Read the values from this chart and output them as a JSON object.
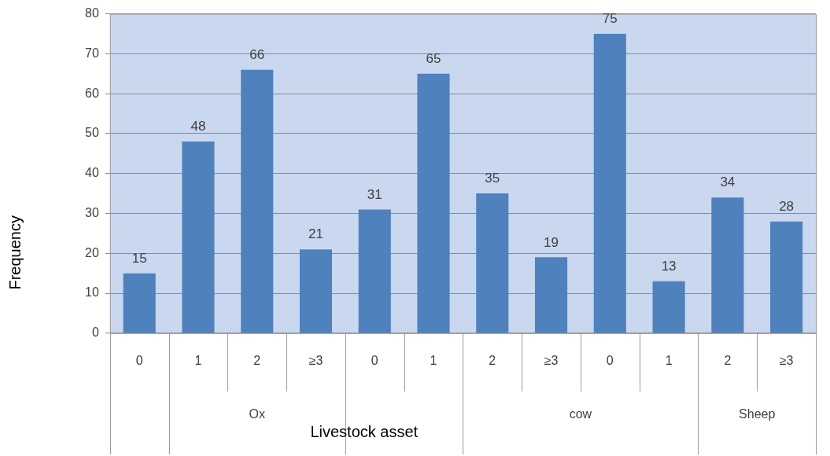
{
  "chart_data": {
    "type": "bar",
    "xlabel": "Livestock asset",
    "ylabel": "Frequency",
    "categories": [
      "0",
      "1",
      "2",
      "≥3",
      "0",
      "1",
      "2",
      "≥3",
      "0",
      "1",
      "2",
      "≥3"
    ],
    "values": [
      15,
      48,
      66,
      21,
      31,
      65,
      35,
      19,
      75,
      13,
      34,
      28
    ],
    "color": "#4f81bd",
    "ylim": [
      0,
      80
    ],
    "yticks": [
      0,
      10,
      20,
      30,
      40,
      50,
      60,
      70,
      80
    ],
    "grid": "y",
    "data_labels": true,
    "legend": false,
    "annotations": [
      "Ox",
      "cow",
      "Sheep"
    ]
  }
}
